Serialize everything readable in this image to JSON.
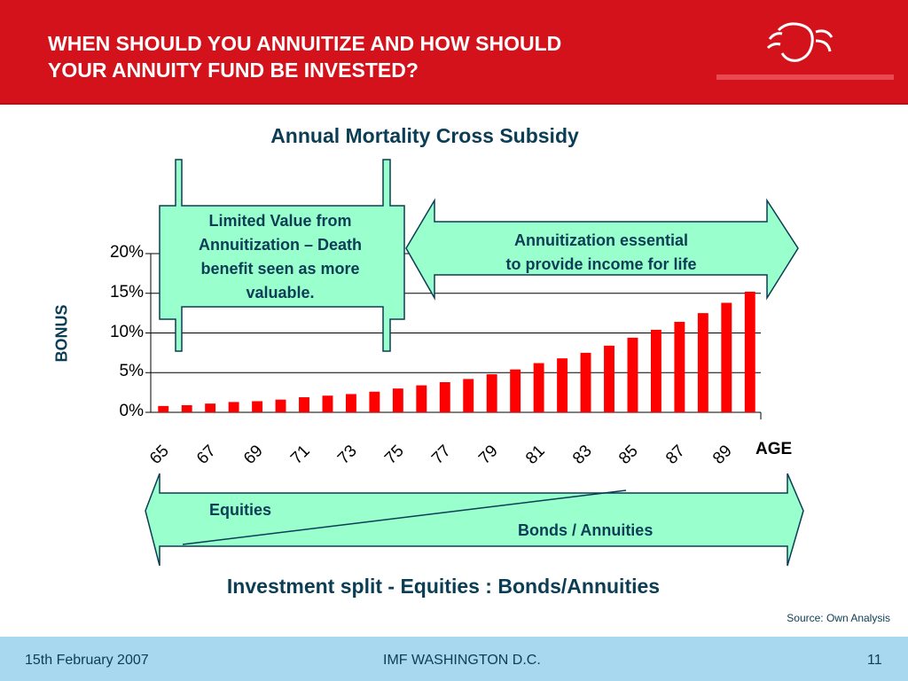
{
  "header": {
    "title_line1": "WHEN SHOULD YOU ANNUITIZE AND HOW SHOULD",
    "title_line2": "YOUR ANNUITY  FUND BE INVESTED?",
    "brand_color": "#d4121c"
  },
  "chart_data": {
    "type": "bar",
    "title": "Annual Mortality Cross Subsidy",
    "ylabel": "BONUS",
    "xlabel": "AGE",
    "ylim": [
      0,
      20
    ],
    "yticks": [
      "0%",
      "5%",
      "10%",
      "15%",
      "20%"
    ],
    "xtick_labels": [
      "65",
      "67",
      "69",
      "71",
      "73",
      "75",
      "77",
      "79",
      "81",
      "83",
      "85",
      "87",
      "89"
    ],
    "categories": [
      65,
      66,
      67,
      68,
      69,
      70,
      71,
      72,
      73,
      74,
      75,
      76,
      77,
      78,
      79,
      80,
      81,
      82,
      83,
      84,
      85,
      86,
      87,
      88,
      89,
      90
    ],
    "values": [
      0.8,
      0.9,
      1.1,
      1.3,
      1.4,
      1.6,
      1.9,
      2.1,
      2.3,
      2.6,
      3.0,
      3.4,
      3.8,
      4.2,
      4.8,
      5.4,
      6.2,
      6.8,
      7.5,
      8.4,
      9.4,
      10.4,
      11.4,
      12.5,
      13.8,
      15.2
    ],
    "bar_color": "#ff0000",
    "grid": true
  },
  "callouts": {
    "left_line1": "Limited Value from",
    "left_line2": "Annuitization – Death",
    "left_line3": "benefit seen as more",
    "left_line4": "valuable.",
    "right_line1": "Annuitization essential",
    "right_line2": "to provide income for life",
    "fill_color": "#99ffcc"
  },
  "investment": {
    "equities_label": "Equities",
    "bonds_label": "Bonds / Annuities",
    "title": "Investment split - Equities : Bonds/Annuities"
  },
  "source": "Source:  Own Analysis",
  "footer": {
    "date": "15th February 2007",
    "event": "IMF WASHINGTON D.C.",
    "page": "11"
  }
}
